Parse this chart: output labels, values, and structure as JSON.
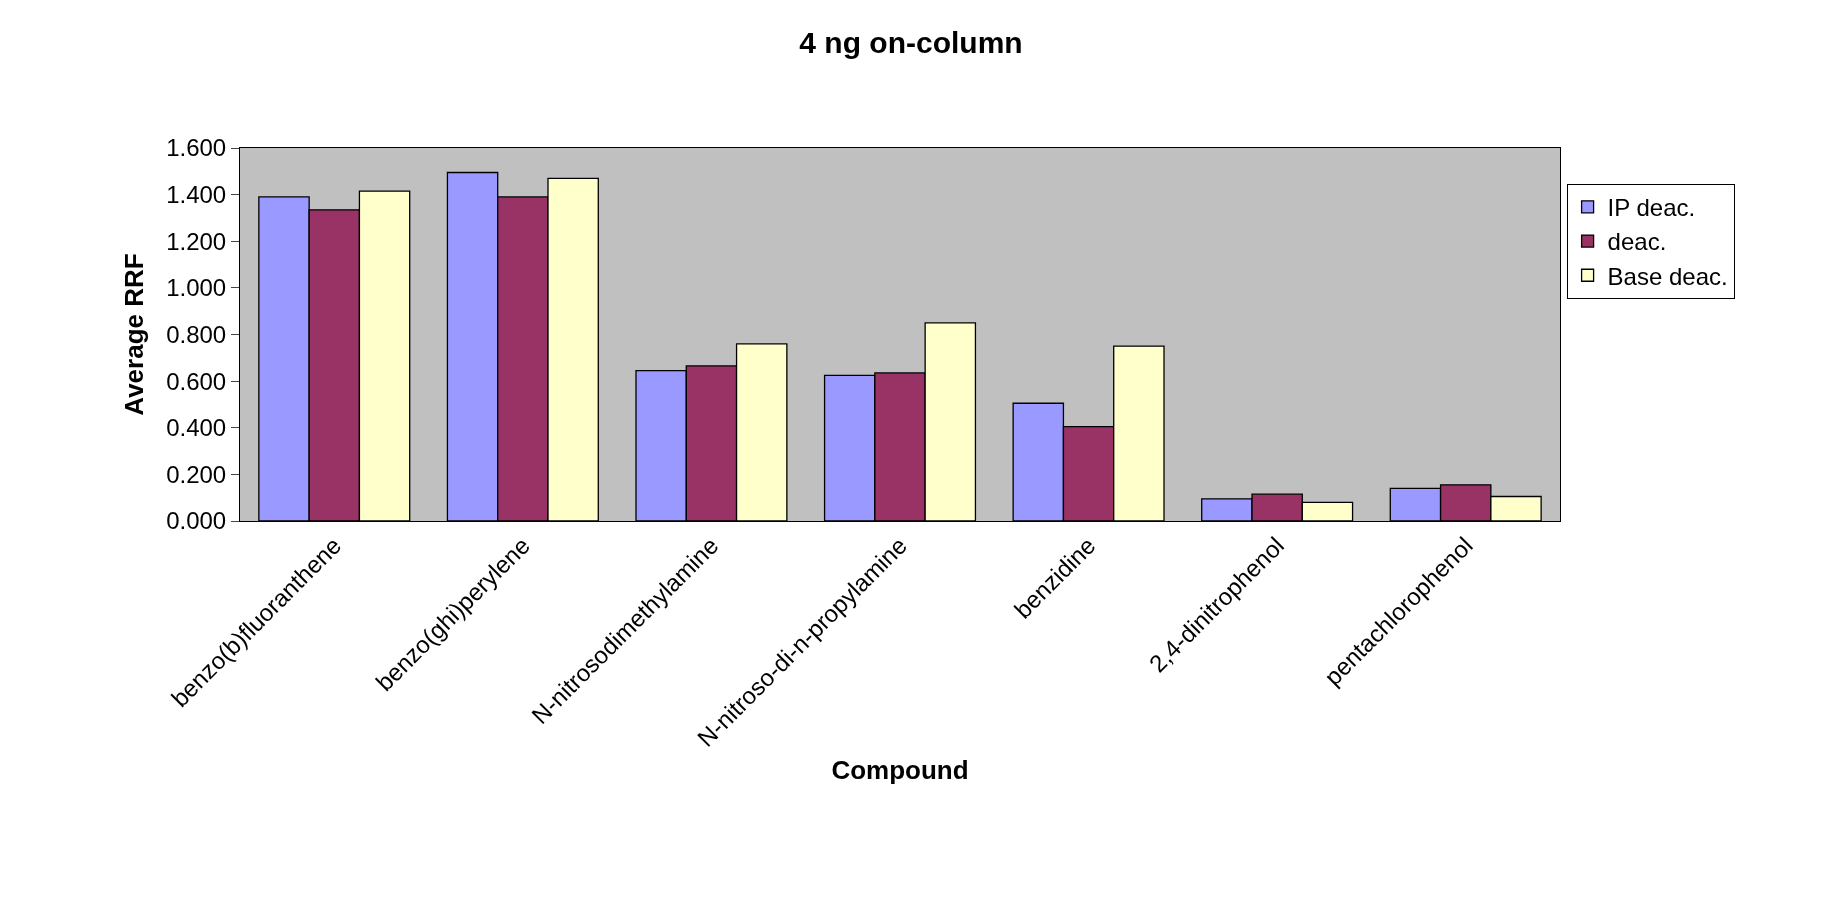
{
  "chart_data": {
    "type": "bar",
    "title": "4 ng on-column",
    "xlabel": "Compound",
    "ylabel": "Average RRF",
    "categories": [
      "benzo(b)fluoranthene",
      "benzo(ghi)perylene",
      "N-nitrosodimethylamine",
      "N-nitroso-di-n-propylamine",
      "benzidine",
      "2,4-dinitrophenol",
      "pentachlorophenol"
    ],
    "series": [
      {
        "name": "IP deac.",
        "color": "#9999ff",
        "values": [
          1.39,
          1.495,
          0.645,
          0.625,
          0.505,
          0.095,
          0.14
        ]
      },
      {
        "name": "deac.",
        "color": "#993366",
        "values": [
          1.335,
          1.39,
          0.665,
          0.635,
          0.405,
          0.115,
          0.155
        ]
      },
      {
        "name": "Base deac.",
        "color": "#ffffcc",
        "values": [
          1.415,
          1.47,
          0.76,
          0.85,
          0.75,
          0.08,
          0.105
        ]
      }
    ],
    "ylim": [
      0,
      1.6
    ],
    "yticks": [
      {
        "value": 0,
        "label": "0.000"
      },
      {
        "value": 0.2,
        "label": "0.200"
      },
      {
        "value": 0.4,
        "label": "0.400"
      },
      {
        "value": 0.6,
        "label": "0.600"
      },
      {
        "value": 0.8,
        "label": "0.800"
      },
      {
        "value": 1.0,
        "label": "1.000"
      },
      {
        "value": 1.2,
        "label": "1.200"
      },
      {
        "value": 1.4,
        "label": "1.400"
      },
      {
        "value": 1.6,
        "label": "1.600"
      }
    ],
    "grid": false,
    "legend": "right"
  }
}
